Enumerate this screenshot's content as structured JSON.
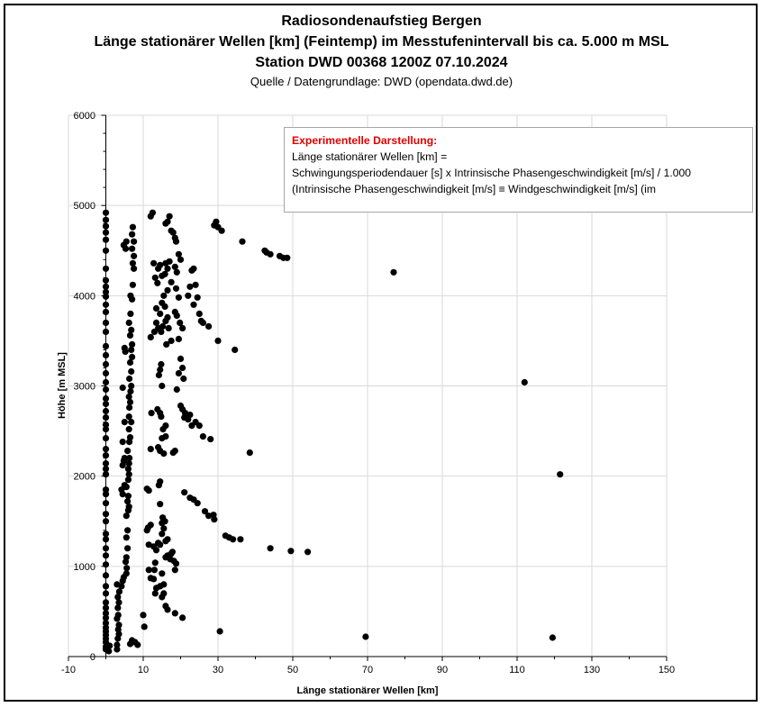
{
  "header": {
    "line1": "Radiosondenaufstieg Bergen",
    "line2": "Länge stationärer Wellen [km] (Feintemp) im Messtufenintervall bis ca. 5.000 m MSL",
    "line3": "Station DWD 00368 1200Z 07.10.2024",
    "source": "Quelle / Datengrundlage: DWD (opendata.dwd.de)"
  },
  "annotation": {
    "heading": "Experimentelle Darstellung:",
    "line1": "Länge stationärer Wellen [km] =",
    "line2": "Schwingungsperiodendauer [s] x Intrinsische Phasengeschwindigkeit [m/s]  / 1.000",
    "line3": "(Intrinsische Phasengeschwindigkeit [m/s] ≡ Windgeschwindigkeit [m/s] (im",
    "heading_color": "#e00000"
  },
  "chart_data": {
    "type": "scatter",
    "xlabel": "Länge stationärer Wellen [km]",
    "ylabel": "Höhe [m MSL]",
    "xlim": [
      -10,
      150
    ],
    "ylim": [
      0,
      6000
    ],
    "x_ticks": [
      "-10",
      "10",
      "30",
      "50",
      "70",
      "90",
      "110",
      "130",
      "150"
    ],
    "y_ticks": [
      "0",
      "1000",
      "2000",
      "3000",
      "4000",
      "5000",
      "6000"
    ],
    "grid": true,
    "marker_color": "#000000",
    "points": [
      [
        0,
        80
      ],
      [
        0,
        110
      ],
      [
        0,
        160
      ],
      [
        0,
        200
      ],
      [
        0,
        240
      ],
      [
        0,
        280
      ],
      [
        0,
        320
      ],
      [
        0,
        370
      ],
      [
        0,
        430
      ],
      [
        0,
        480
      ],
      [
        0,
        540
      ],
      [
        0,
        600
      ],
      [
        0,
        700
      ],
      [
        0,
        780
      ],
      [
        0,
        900
      ],
      [
        0,
        1020
      ],
      [
        0,
        1120
      ],
      [
        0,
        1200
      ],
      [
        0,
        1300
      ],
      [
        0,
        1360
      ],
      [
        0,
        1500
      ],
      [
        0,
        1580
      ],
      [
        0,
        1700
      ],
      [
        0,
        1800
      ],
      [
        0,
        1850
      ],
      [
        0,
        2020
      ],
      [
        0,
        2080
      ],
      [
        0,
        2140
      ],
      [
        0,
        2230
      ],
      [
        0,
        2300
      ],
      [
        0,
        2420
      ],
      [
        0,
        2520
      ],
      [
        0,
        2570
      ],
      [
        0,
        2650
      ],
      [
        0,
        2720
      ],
      [
        0,
        2800
      ],
      [
        0,
        2860
      ],
      [
        0,
        2960
      ],
      [
        0,
        3040
      ],
      [
        0,
        3140
      ],
      [
        0,
        3240
      ],
      [
        0,
        3340
      ],
      [
        0,
        3440
      ],
      [
        0,
        3600
      ],
      [
        0,
        3700
      ],
      [
        0,
        3820
      ],
      [
        0,
        3900
      ],
      [
        0,
        3990
      ],
      [
        0,
        4040
      ],
      [
        0,
        4100
      ],
      [
        0,
        4170
      ],
      [
        0,
        4300
      ],
      [
        0,
        4500
      ],
      [
        0,
        4620
      ],
      [
        0,
        4700
      ],
      [
        0,
        4770
      ],
      [
        0,
        4840
      ],
      [
        0,
        4920
      ],
      [
        0.8,
        60
      ],
      [
        1,
        120
      ],
      [
        3,
        80
      ],
      [
        3,
        130
      ],
      [
        3.2,
        200
      ],
      [
        3.5,
        250
      ],
      [
        3.3,
        300
      ],
      [
        3.5,
        350
      ],
      [
        3,
        420
      ],
      [
        3.3,
        460
      ],
      [
        3.2,
        540
      ],
      [
        3.5,
        600
      ],
      [
        3.2,
        660
      ],
      [
        3.6,
        720
      ],
      [
        3,
        800
      ],
      [
        4.2,
        780
      ],
      [
        4.5,
        840
      ],
      [
        4.8,
        880
      ],
      [
        4.5,
        1800
      ],
      [
        4.2,
        1850
      ],
      [
        5,
        1900
      ],
      [
        4.5,
        2120
      ],
      [
        4.8,
        2170
      ],
      [
        5,
        2200
      ],
      [
        4.5,
        2380
      ],
      [
        5,
        2600
      ],
      [
        4.5,
        2980
      ],
      [
        5,
        3420
      ],
      [
        5.2,
        3380
      ],
      [
        4.8,
        4560
      ],
      [
        5.3,
        4520
      ],
      [
        5.5,
        4600
      ],
      [
        5.5,
        920
      ],
      [
        5.6,
        980
      ],
      [
        5.3,
        1050
      ],
      [
        5.5,
        1100
      ],
      [
        5.8,
        1200
      ],
      [
        5.5,
        1320
      ],
      [
        5.8,
        1400
      ],
      [
        5.5,
        1560
      ],
      [
        6,
        1620
      ],
      [
        6.2,
        1660
      ],
      [
        5.8,
        1720
      ],
      [
        6,
        1780
      ],
      [
        5.5,
        1880
      ],
      [
        6,
        1960
      ],
      [
        6.2,
        2020
      ],
      [
        6,
        2080
      ],
      [
        6.2,
        2140
      ],
      [
        6.3,
        2200
      ],
      [
        5.8,
        2280
      ],
      [
        6.3,
        2380
      ],
      [
        6.5,
        2430
      ],
      [
        6.2,
        2520
      ],
      [
        6.8,
        2600
      ],
      [
        6.2,
        2660
      ],
      [
        6.3,
        2760
      ],
      [
        6.5,
        2820
      ],
      [
        6.2,
        2880
      ],
      [
        6.6,
        2940
      ],
      [
        6.8,
        3000
      ],
      [
        6.3,
        3080
      ],
      [
        6.8,
        3160
      ],
      [
        6.5,
        3260
      ],
      [
        7,
        3320
      ],
      [
        6.8,
        3400
      ],
      [
        7,
        3460
      ],
      [
        6.5,
        3560
      ],
      [
        6.8,
        3620
      ],
      [
        6.2,
        3700
      ],
      [
        6.6,
        3800
      ],
      [
        7,
        3960
      ],
      [
        6.6,
        4000
      ],
      [
        7.2,
        4120
      ],
      [
        7.5,
        4300
      ],
      [
        7.2,
        4360
      ],
      [
        7.5,
        4440
      ],
      [
        7,
        4520
      ],
      [
        7.5,
        4600
      ],
      [
        7,
        4680
      ],
      [
        7.2,
        4760
      ],
      [
        6.5,
        140
      ],
      [
        7,
        180
      ],
      [
        7.8,
        160
      ],
      [
        8.5,
        130
      ],
      [
        10,
        460
      ],
      [
        10.3,
        330
      ],
      [
        11,
        1400
      ],
      [
        11.3,
        1430
      ],
      [
        12,
        1460
      ],
      [
        11.5,
        1240
      ],
      [
        12.8,
        1220
      ],
      [
        11.5,
        960
      ],
      [
        12,
        870
      ],
      [
        12.8,
        860
      ],
      [
        13.2,
        700
      ],
      [
        13.5,
        760
      ],
      [
        13,
        960
      ],
      [
        13.2,
        1040
      ],
      [
        13.5,
        1180
      ],
      [
        14,
        1260
      ],
      [
        14.5,
        1240
      ],
      [
        15,
        1360
      ],
      [
        15.5,
        1420
      ],
      [
        15,
        1480
      ],
      [
        15.2,
        1540
      ],
      [
        15.8,
        1500
      ],
      [
        14.5,
        1690
      ],
      [
        16,
        1280
      ],
      [
        16.5,
        1300
      ],
      [
        16,
        1100
      ],
      [
        16.5,
        1120
      ],
      [
        17.2,
        1080
      ],
      [
        17.5,
        1140
      ],
      [
        17.8,
        1160
      ],
      [
        18.2,
        1060
      ],
      [
        18.5,
        960
      ],
      [
        18.8,
        1030
      ],
      [
        15,
        660
      ],
      [
        15.5,
        700
      ],
      [
        14.5,
        780
      ],
      [
        15,
        920
      ],
      [
        15.5,
        800
      ],
      [
        16,
        560
      ],
      [
        16.5,
        520
      ],
      [
        18.5,
        480
      ],
      [
        20.5,
        430
      ],
      [
        11,
        1860
      ],
      [
        11.5,
        1840
      ],
      [
        14.2,
        1900
      ],
      [
        14.5,
        1940
      ],
      [
        12,
        2300
      ],
      [
        12.2,
        2700
      ],
      [
        14,
        2320
      ],
      [
        14.5,
        2280
      ],
      [
        15,
        2420
      ],
      [
        15.5,
        2250
      ],
      [
        16,
        2440
      ],
      [
        13.8,
        2740
      ],
      [
        14.8,
        2660
      ],
      [
        14.5,
        2700
      ],
      [
        15.3,
        2520
      ],
      [
        16,
        2560
      ],
      [
        12,
        3540
      ],
      [
        13,
        3600
      ],
      [
        13.5,
        3700
      ],
      [
        14,
        3640
      ],
      [
        14.8,
        3600
      ],
      [
        15.2,
        3660
      ],
      [
        13.5,
        3860
      ],
      [
        14.5,
        3800
      ],
      [
        15,
        3920
      ],
      [
        15.8,
        3880
      ],
      [
        16,
        3720
      ],
      [
        16.5,
        3760
      ],
      [
        16.8,
        3640
      ],
      [
        17.5,
        3500
      ],
      [
        16.2,
        3460
      ],
      [
        15.5,
        4000
      ],
      [
        16.5,
        4060
      ],
      [
        15.8,
        4240
      ],
      [
        16.5,
        4300
      ],
      [
        16,
        4360
      ],
      [
        17,
        4380
      ],
      [
        17.5,
        4150
      ],
      [
        13.2,
        4200
      ],
      [
        14,
        4300
      ],
      [
        14.5,
        4340
      ],
      [
        15,
        4220
      ],
      [
        12.8,
        4360
      ],
      [
        13.8,
        4140
      ],
      [
        14.2,
        3120
      ],
      [
        14.5,
        3180
      ],
      [
        14.8,
        3240
      ],
      [
        15,
        3000
      ],
      [
        12,
        4880
      ],
      [
        12.5,
        4920
      ],
      [
        16,
        4800
      ],
      [
        16.5,
        4820
      ],
      [
        17,
        4880
      ],
      [
        17.5,
        4720
      ],
      [
        18,
        4700
      ],
      [
        18.5,
        4640
      ],
      [
        18.8,
        4600
      ],
      [
        19.5,
        4460
      ],
      [
        20,
        4400
      ],
      [
        18.5,
        4320
      ],
      [
        19,
        4260
      ],
      [
        18.8,
        4080
      ],
      [
        19.5,
        3980
      ],
      [
        18.5,
        3820
      ],
      [
        19,
        3780
      ],
      [
        19.8,
        3700
      ],
      [
        20.5,
        3640
      ],
      [
        19.5,
        3520
      ],
      [
        20,
        3300
      ],
      [
        20.5,
        3200
      ],
      [
        19.5,
        3140
      ],
      [
        20.8,
        3080
      ],
      [
        19,
        2960
      ],
      [
        20,
        2780
      ],
      [
        20.5,
        2740
      ],
      [
        21,
        2650
      ],
      [
        21.2,
        2700
      ],
      [
        22,
        2630
      ],
      [
        22.5,
        2680
      ],
      [
        23,
        2560
      ],
      [
        24,
        2600
      ],
      [
        25,
        2560
      ],
      [
        26,
        2440
      ],
      [
        28,
        2410
      ],
      [
        18,
        2260
      ],
      [
        18.5,
        2280
      ],
      [
        21,
        1820
      ],
      [
        22.5,
        1760
      ],
      [
        23.5,
        1740
      ],
      [
        24.5,
        1700
      ],
      [
        26.5,
        1610
      ],
      [
        27.5,
        1560
      ],
      [
        29,
        1520
      ],
      [
        28.8,
        1570
      ],
      [
        22,
        4000
      ],
      [
        22.5,
        4100
      ],
      [
        23,
        4280
      ],
      [
        23.5,
        4300
      ],
      [
        24,
        4120
      ],
      [
        23.5,
        3900
      ],
      [
        24.5,
        3980
      ],
      [
        25,
        3800
      ],
      [
        25.5,
        3720
      ],
      [
        26,
        3700
      ],
      [
        27.5,
        3660
      ],
      [
        30,
        3500
      ],
      [
        34.5,
        3400
      ],
      [
        38.5,
        2260
      ],
      [
        29,
        4780
      ],
      [
        29.5,
        4820
      ],
      [
        30,
        4760
      ],
      [
        31,
        4720
      ],
      [
        36.5,
        4600
      ],
      [
        42.5,
        4500
      ],
      [
        43,
        4480
      ],
      [
        44,
        4460
      ],
      [
        46.5,
        4440
      ],
      [
        47.5,
        4420
      ],
      [
        48.5,
        4420
      ],
      [
        77,
        4260
      ],
      [
        32,
        1340
      ],
      [
        33,
        1320
      ],
      [
        34,
        1300
      ],
      [
        36,
        1300
      ],
      [
        44,
        1200
      ],
      [
        49.5,
        1170
      ],
      [
        54,
        1160
      ],
      [
        30.5,
        280
      ],
      [
        69.5,
        220
      ],
      [
        119.5,
        210
      ],
      [
        112,
        3040
      ],
      [
        121.5,
        2020
      ]
    ]
  }
}
